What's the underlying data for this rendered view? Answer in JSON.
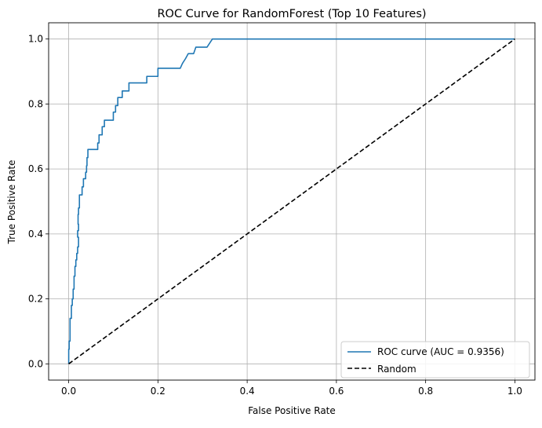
{
  "chart_data": {
    "type": "line",
    "title": "ROC Curve for RandomForest (Top 10 Features)",
    "xlabel": "False Positive Rate",
    "ylabel": "True Positive Rate",
    "xlim": [
      -0.045,
      1.045
    ],
    "ylim": [
      -0.05,
      1.05
    ],
    "xticks": [
      0.0,
      0.2,
      0.4,
      0.6,
      0.8,
      1.0
    ],
    "yticks": [
      0.0,
      0.2,
      0.4,
      0.6,
      0.8,
      1.0
    ],
    "xtick_labels": [
      "0.0",
      "0.2",
      "0.4",
      "0.6",
      "0.8",
      "1.0"
    ],
    "ytick_labels": [
      "0.0",
      "0.2",
      "0.4",
      "0.6",
      "0.8",
      "1.0"
    ],
    "grid": true,
    "legend_position": "lower-right",
    "series": [
      {
        "name": "ROC curve (AUC = 0.9356)",
        "color": "#1f77b4",
        "style": "solid",
        "points": [
          [
            0.0,
            0.0
          ],
          [
            0.0,
            0.045
          ],
          [
            0.001,
            0.045
          ],
          [
            0.001,
            0.07
          ],
          [
            0.003,
            0.07
          ],
          [
            0.003,
            0.14
          ],
          [
            0.006,
            0.14
          ],
          [
            0.006,
            0.18
          ],
          [
            0.008,
            0.18
          ],
          [
            0.008,
            0.2
          ],
          [
            0.01,
            0.2
          ],
          [
            0.01,
            0.23
          ],
          [
            0.012,
            0.23
          ],
          [
            0.012,
            0.27
          ],
          [
            0.014,
            0.27
          ],
          [
            0.014,
            0.3
          ],
          [
            0.016,
            0.3
          ],
          [
            0.016,
            0.32
          ],
          [
            0.018,
            0.32
          ],
          [
            0.018,
            0.34
          ],
          [
            0.02,
            0.34
          ],
          [
            0.02,
            0.36
          ],
          [
            0.022,
            0.36
          ],
          [
            0.022,
            0.39
          ],
          [
            0.02,
            0.39
          ],
          [
            0.02,
            0.41
          ],
          [
            0.022,
            0.41
          ],
          [
            0.022,
            0.43
          ],
          [
            0.021,
            0.43
          ],
          [
            0.021,
            0.46
          ],
          [
            0.022,
            0.46
          ],
          [
            0.022,
            0.48
          ],
          [
            0.024,
            0.48
          ],
          [
            0.024,
            0.52
          ],
          [
            0.03,
            0.52
          ],
          [
            0.03,
            0.545
          ],
          [
            0.033,
            0.545
          ],
          [
            0.033,
            0.57
          ],
          [
            0.038,
            0.57
          ],
          [
            0.038,
            0.59
          ],
          [
            0.04,
            0.59
          ],
          [
            0.04,
            0.61
          ],
          [
            0.041,
            0.61
          ],
          [
            0.041,
            0.635
          ],
          [
            0.043,
            0.635
          ],
          [
            0.043,
            0.66
          ],
          [
            0.065,
            0.66
          ],
          [
            0.065,
            0.68
          ],
          [
            0.068,
            0.68
          ],
          [
            0.068,
            0.705
          ],
          [
            0.075,
            0.705
          ],
          [
            0.075,
            0.73
          ],
          [
            0.08,
            0.73
          ],
          [
            0.08,
            0.75
          ],
          [
            0.1,
            0.75
          ],
          [
            0.1,
            0.775
          ],
          [
            0.105,
            0.775
          ],
          [
            0.105,
            0.795
          ],
          [
            0.11,
            0.795
          ],
          [
            0.11,
            0.82
          ],
          [
            0.12,
            0.82
          ],
          [
            0.12,
            0.84
          ],
          [
            0.135,
            0.84
          ],
          [
            0.135,
            0.865
          ],
          [
            0.175,
            0.865
          ],
          [
            0.175,
            0.885
          ],
          [
            0.2,
            0.885
          ],
          [
            0.2,
            0.91
          ],
          [
            0.25,
            0.91
          ],
          [
            0.255,
            0.925
          ],
          [
            0.262,
            0.94
          ],
          [
            0.268,
            0.955
          ],
          [
            0.28,
            0.955
          ],
          [
            0.285,
            0.975
          ],
          [
            0.31,
            0.975
          ],
          [
            0.322,
            1.0
          ],
          [
            1.0,
            1.0
          ]
        ]
      },
      {
        "name": "Random",
        "color": "#000000",
        "style": "dashed",
        "points": [
          [
            0.0,
            0.0
          ],
          [
            1.0,
            1.0
          ]
        ]
      }
    ]
  }
}
